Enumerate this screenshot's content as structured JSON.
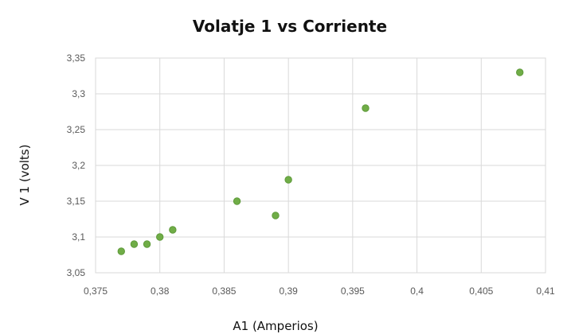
{
  "chart_data": {
    "type": "scatter",
    "title": "Volatje 1 vs Corriente",
    "xlabel": "A1 (Amperios)",
    "ylabel": "V 1 (volts)",
    "xlim": [
      0.375,
      0.41
    ],
    "ylim": [
      3.05,
      3.35
    ],
    "xticks": [
      "0,375",
      "0,38",
      "0,385",
      "0,39",
      "0,395",
      "0,4",
      "0,405",
      "0,41"
    ],
    "yticks": [
      "3,05",
      "3,1",
      "3,15",
      "3,2",
      "3,25",
      "3,3",
      "3,35"
    ],
    "grid": true,
    "legend": "none",
    "marker_color": "#70ad47",
    "series": [
      {
        "x": [
          0.377,
          0.378,
          0.379,
          0.38,
          0.381,
          0.386,
          0.389,
          0.39,
          0.396,
          0.408
        ],
        "y": [
          3.08,
          3.09,
          3.09,
          3.1,
          3.11,
          3.15,
          3.13,
          3.18,
          3.28,
          3.33
        ]
      }
    ]
  }
}
